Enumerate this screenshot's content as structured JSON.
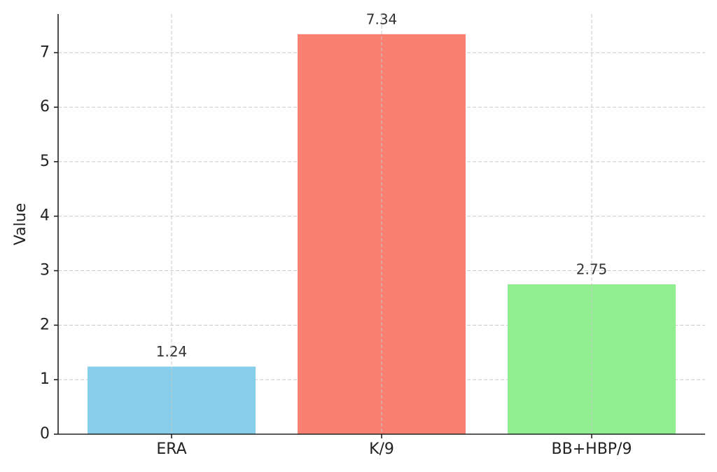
{
  "chart_data": {
    "type": "bar",
    "y_label": "Value",
    "categories": [
      "ERA",
      "K/9",
      "BB+HBP/9"
    ],
    "values": [
      1.24,
      7.34,
      2.75
    ],
    "colors": [
      "#87ceeb",
      "#fa8072",
      "#90ee90"
    ],
    "ylim": [
      0,
      7.71
    ],
    "yticks": [
      0,
      1,
      2,
      3,
      4,
      5,
      6,
      7
    ],
    "grid": true
  }
}
